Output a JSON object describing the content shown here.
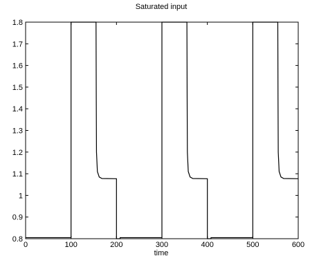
{
  "chart_data": {
    "type": "line",
    "title": "Saturated input",
    "xlabel": "time",
    "ylabel": "",
    "xlim": [
      0,
      600
    ],
    "ylim": [
      0.8,
      1.8
    ],
    "grid": false,
    "xticks": [
      0,
      100,
      200,
      300,
      400,
      500,
      600
    ],
    "xtick_labels": [
      "0",
      "100",
      "200",
      "300",
      "400",
      "500",
      "600"
    ],
    "yticks": [
      0.8,
      0.9,
      1.0,
      1.1,
      1.2,
      1.3,
      1.4,
      1.5,
      1.6,
      1.7,
      1.8
    ],
    "ytick_labels": [
      "0.8",
      "0.9",
      "1",
      "1.1",
      "1.2",
      "1.3",
      "1.4",
      "1.5",
      "1.6",
      "1.7",
      "1.8"
    ],
    "series": [
      {
        "color": "#000000",
        "points": [
          [
            0,
            0.805
          ],
          [
            100,
            0.805
          ],
          [
            100,
            1.8
          ],
          [
            155,
            1.8
          ],
          [
            155.5,
            1.45
          ],
          [
            156,
            1.2
          ],
          [
            158,
            1.11
          ],
          [
            162,
            1.085
          ],
          [
            168,
            1.078
          ],
          [
            200,
            1.077
          ],
          [
            200,
            0.8
          ],
          [
            208,
            0.8
          ],
          [
            208,
            0.805
          ],
          [
            300,
            0.805
          ],
          [
            300,
            1.8
          ],
          [
            355,
            1.8
          ],
          [
            355.5,
            1.45
          ],
          [
            356,
            1.2
          ],
          [
            358,
            1.11
          ],
          [
            362,
            1.085
          ],
          [
            368,
            1.078
          ],
          [
            400,
            1.077
          ],
          [
            400,
            0.8
          ],
          [
            408,
            0.8
          ],
          [
            408,
            0.805
          ],
          [
            500,
            0.805
          ],
          [
            500,
            1.8
          ],
          [
            555,
            1.8
          ],
          [
            555.5,
            1.45
          ],
          [
            556,
            1.2
          ],
          [
            558,
            1.11
          ],
          [
            562,
            1.085
          ],
          [
            568,
            1.078
          ],
          [
            600,
            1.077
          ]
        ]
      }
    ]
  }
}
